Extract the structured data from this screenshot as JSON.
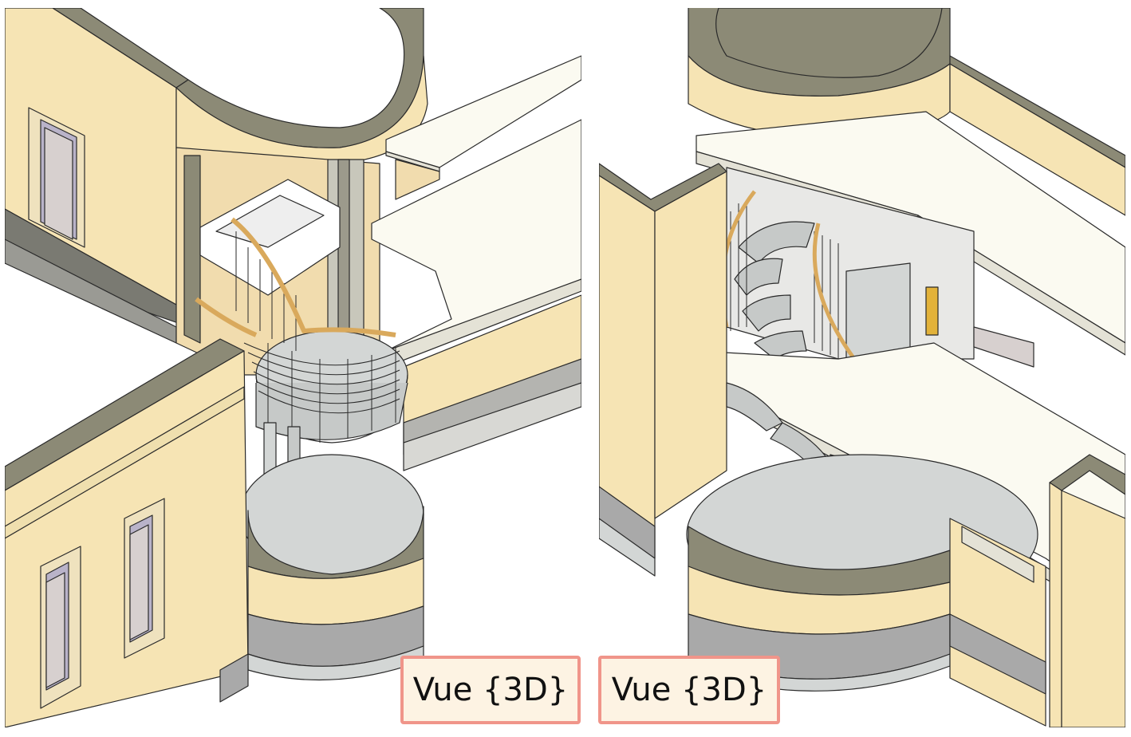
{
  "views": [
    {
      "label": "Vue {3D}"
    },
    {
      "label": "Vue {3D}"
    }
  ],
  "colors": {
    "wall": "#f6e4b4",
    "wall_side": "#e9d29d",
    "wall_top": "#8c8a76",
    "slab": "#fbfaf1",
    "floor": "#d3d6d5",
    "masonry": "#a9a9a9",
    "rail": "#d9a95c",
    "outline": "#2a2a2a"
  }
}
